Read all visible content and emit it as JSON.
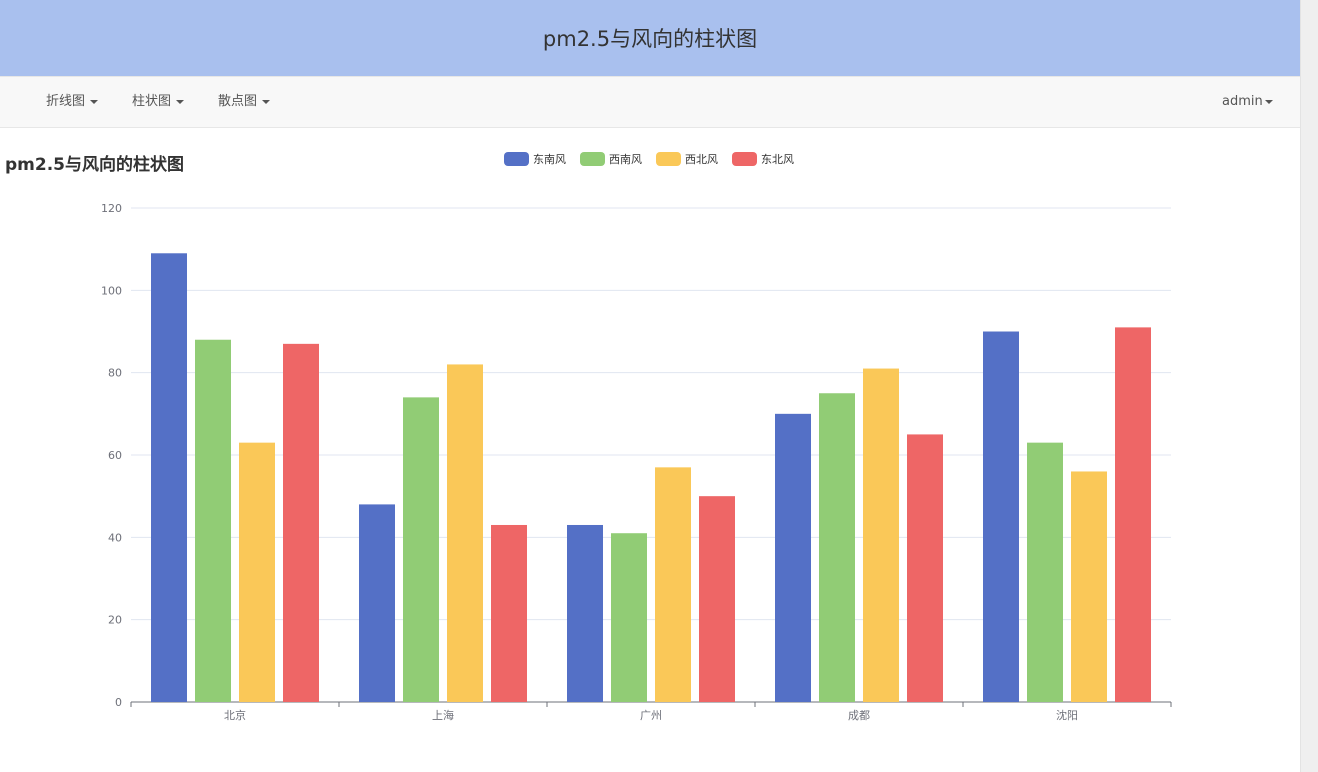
{
  "banner": {
    "title": "pm2.5与风向的柱状图"
  },
  "navbar": {
    "menus": [
      {
        "label": "折线图"
      },
      {
        "label": "柱状图"
      },
      {
        "label": "散点图"
      }
    ],
    "user": "admin"
  },
  "colors": {
    "banner_bg": "#a9c0ee",
    "navbar_bg": "#f8f8f8"
  },
  "chart_data": {
    "type": "bar",
    "title": "pm2.5与风向的柱状图",
    "categories": [
      "北京",
      "上海",
      "广州",
      "成都",
      "沈阳"
    ],
    "series": [
      {
        "name": "东南风",
        "color": "#5470c6",
        "values": [
          109,
          48,
          43,
          70,
          90
        ]
      },
      {
        "name": "西南风",
        "color": "#91cc75",
        "values": [
          88,
          74,
          41,
          75,
          63
        ]
      },
      {
        "name": "西北风",
        "color": "#fac858",
        "values": [
          63,
          82,
          57,
          81,
          56
        ]
      },
      {
        "name": "东北风",
        "color": "#ee6666",
        "values": [
          87,
          43,
          50,
          65,
          91
        ]
      }
    ],
    "ylim": [
      0,
      120
    ],
    "yticks": [
      0,
      20,
      40,
      60,
      80,
      100,
      120
    ],
    "grid": true,
    "legend_position": "top-center"
  }
}
